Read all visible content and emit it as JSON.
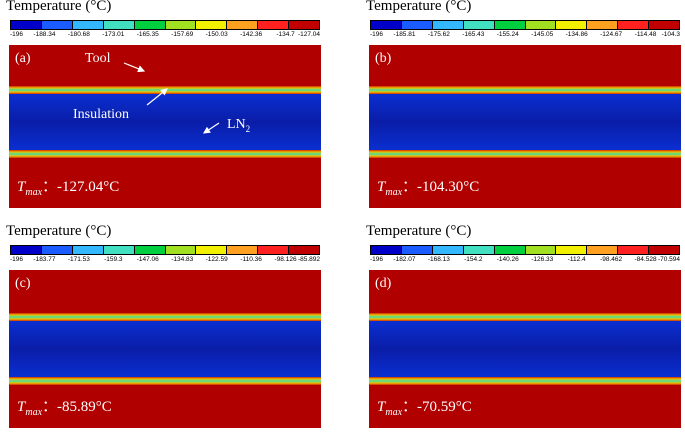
{
  "colors": [
    "#0000c8",
    "#1a5cff",
    "#33b8ff",
    "#40e0c0",
    "#00d040",
    "#a0e020",
    "#f0f000",
    "#ffa020",
    "#ff2020",
    "#c00000"
  ],
  "panels": [
    {
      "id": "a",
      "title": "Temperature (°C)",
      "label": "(a)",
      "ticks": [
        "-196",
        "-188.34",
        "-180.68",
        "-173.01",
        "-165.35",
        "-157.69",
        "-150.03",
        "-142.36",
        "-134.7",
        "-127.04"
      ],
      "tmax_symbol": "T",
      "tmax_sub": "max",
      "tmax_value": "：-127.04°C",
      "annotations": {
        "tool": "Tool",
        "insulation": "Insulation",
        "ln2": "LN",
        "ln2_sub": "2"
      }
    },
    {
      "id": "b",
      "title": "Temperature (°C)",
      "label": "(b)",
      "ticks": [
        "-196",
        "-185.81",
        "-175.62",
        "-165.43",
        "-155.24",
        "-145.05",
        "-134.86",
        "-124.67",
        "-114.48",
        "-104.3"
      ],
      "tmax_symbol": "T",
      "tmax_sub": "max",
      "tmax_value": "：-104.30°C"
    },
    {
      "id": "c",
      "title": "Temperature (°C)",
      "label": "(c)",
      "ticks": [
        "-196",
        "-183.77",
        "-171.53",
        "-159.3",
        "-147.06",
        "-134.83",
        "-122.59",
        "-110.36",
        "-98.126",
        "-85.892"
      ],
      "tmax_symbol": "T",
      "tmax_sub": "max",
      "tmax_value": "：-85.89°C"
    },
    {
      "id": "d",
      "title": "Temperature (°C)",
      "label": "(d)",
      "ticks": [
        "-196",
        "-182.07",
        "-168.13",
        "-154.2",
        "-140.26",
        "-126.33",
        "-112.4",
        "-98.462",
        "-84.528",
        "-70.594"
      ],
      "tmax_symbol": "T",
      "tmax_sub": "max",
      "tmax_value": "：-70.59°C"
    }
  ]
}
